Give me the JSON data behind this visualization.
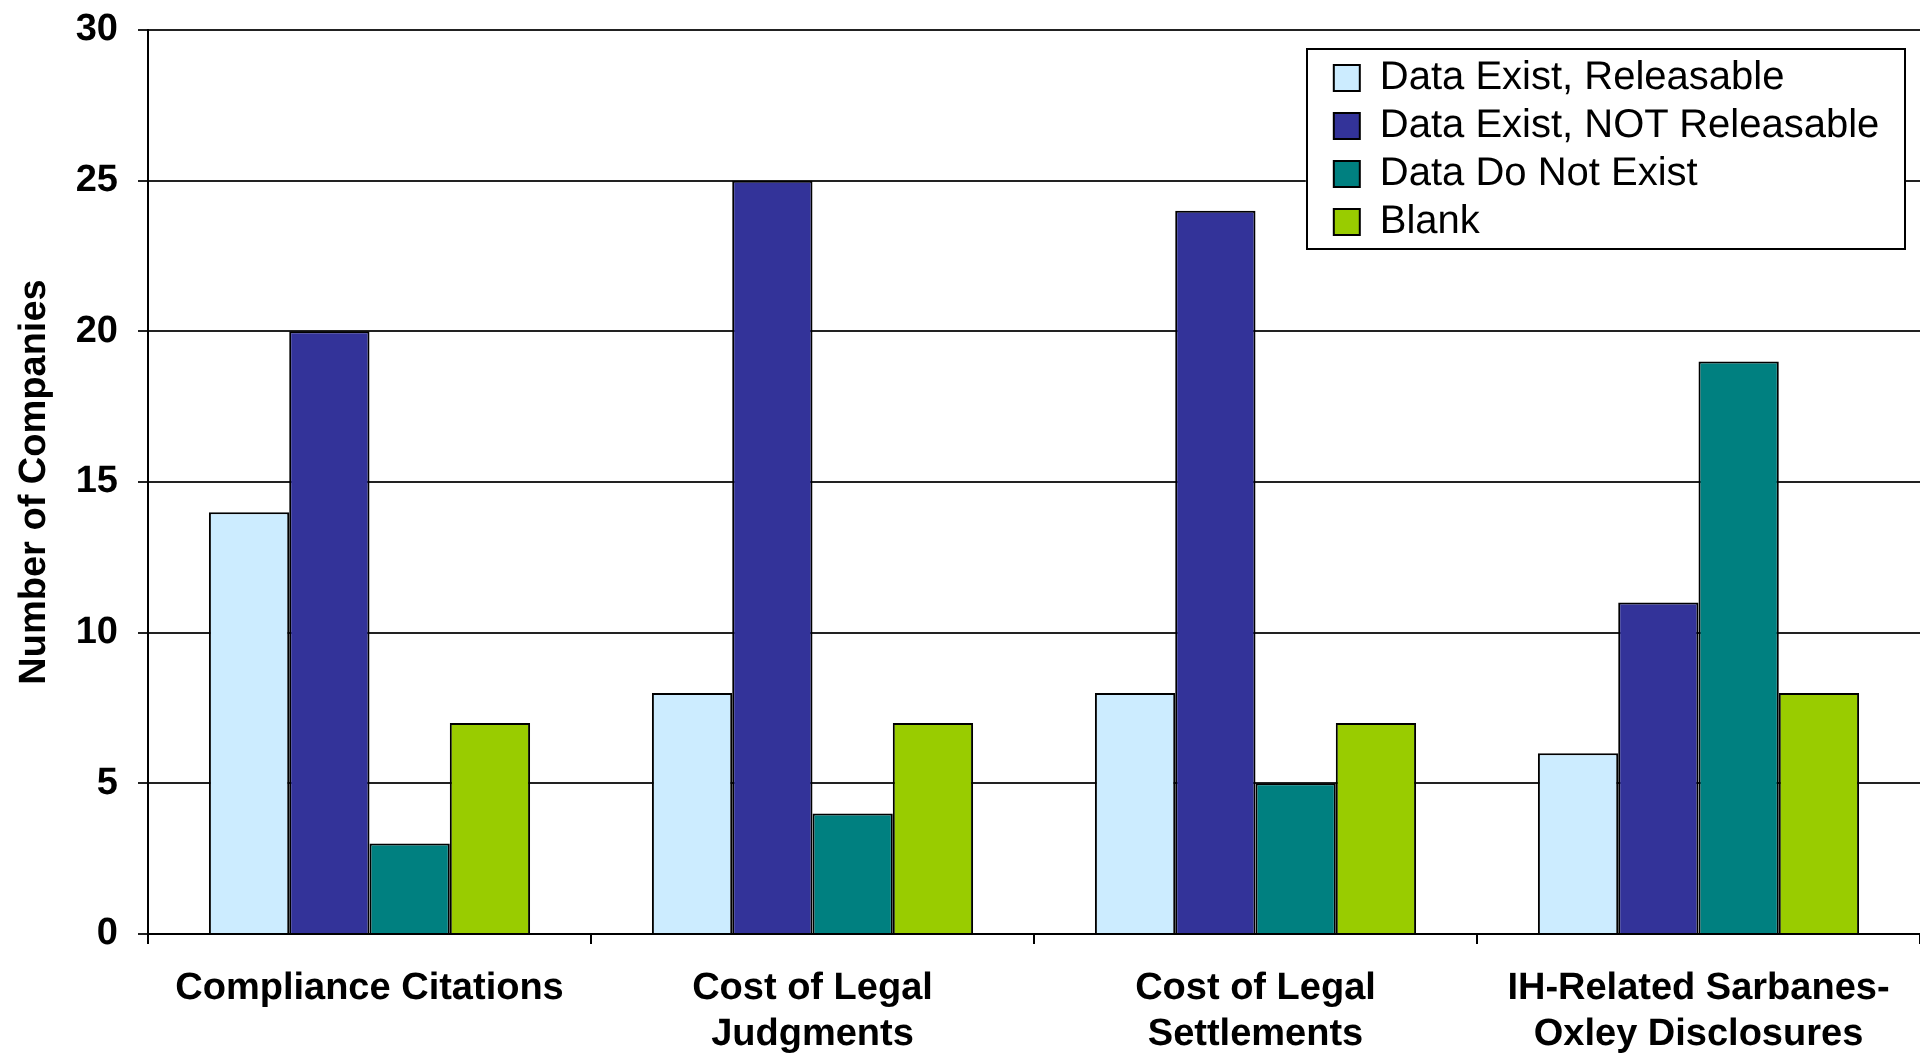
{
  "chart_data": {
    "type": "bar",
    "ylabel": "Number of Companies",
    "categories": [
      "Compliance Citations",
      "Cost of Legal Judgments",
      "Cost of Legal Settlements",
      "IH-Related Sarbanes-Oxley Disclosures"
    ],
    "series": [
      {
        "name": "Data Exist, Releasable",
        "color": "#ccecff",
        "values": [
          14,
          8,
          8,
          6
        ]
      },
      {
        "name": "Data Exist, NOT Releasable",
        "color": "#333399",
        "values": [
          20,
          25,
          24,
          11
        ]
      },
      {
        "name": "Data Do Not Exist",
        "color": "#008080",
        "values": [
          3,
          4,
          5,
          19
        ]
      },
      {
        "name": "Blank",
        "color": "#99cc00",
        "values": [
          7,
          7,
          7,
          8
        ]
      }
    ],
    "ylim": [
      0,
      30
    ],
    "yticks": [
      0,
      5,
      10,
      15,
      20,
      25,
      30
    ],
    "grid": "y",
    "legend": "top right"
  }
}
